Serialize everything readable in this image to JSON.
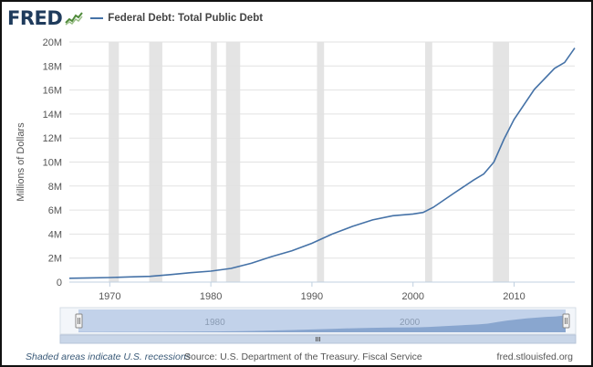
{
  "brand": {
    "logo_text": "FRED",
    "logo_icon": "line-chart-icon"
  },
  "legend": {
    "series_label": "Federal Debt: Total Public Debt",
    "color": "#4572a7"
  },
  "chart_data": {
    "type": "area",
    "ylabel": "Millions of Dollars",
    "ylim": [
      0,
      20000000
    ],
    "xlim": [
      1966,
      2016
    ],
    "y_ticks": [
      0,
      2000000,
      4000000,
      6000000,
      8000000,
      10000000,
      12000000,
      14000000,
      16000000,
      18000000,
      20000000
    ],
    "y_tick_labels": [
      "0",
      "2M",
      "4M",
      "6M",
      "8M",
      "10M",
      "12M",
      "14M",
      "16M",
      "18M",
      "20M"
    ],
    "x_ticks": [
      1970,
      1980,
      1990,
      2000,
      2010
    ],
    "x_tick_labels": [
      "1970",
      "1980",
      "1990",
      "2000",
      "2010"
    ],
    "grid": true,
    "series": [
      {
        "values": [
          [
            1966,
            320000
          ],
          [
            1968,
            350000
          ],
          [
            1970,
            380000
          ],
          [
            1972,
            430000
          ],
          [
            1974,
            480000
          ],
          [
            1976,
            620000
          ],
          [
            1978,
            780000
          ],
          [
            1980,
            910000
          ],
          [
            1982,
            1140000
          ],
          [
            1984,
            1570000
          ],
          [
            1986,
            2120000
          ],
          [
            1988,
            2600000
          ],
          [
            1990,
            3230000
          ],
          [
            1992,
            4000000
          ],
          [
            1994,
            4640000
          ],
          [
            1996,
            5180000
          ],
          [
            1998,
            5530000
          ],
          [
            2000,
            5670000
          ],
          [
            2001,
            5800000
          ],
          [
            2002,
            6230000
          ],
          [
            2004,
            7380000
          ],
          [
            2006,
            8500000
          ],
          [
            2007,
            9010000
          ],
          [
            2008,
            10000000
          ],
          [
            2009,
            11900000
          ],
          [
            2010,
            13550000
          ],
          [
            2012,
            16050000
          ],
          [
            2014,
            17800000
          ],
          [
            2015,
            18300000
          ],
          [
            2016,
            19500000
          ]
        ]
      }
    ],
    "recessions": [
      [
        1969.9,
        1970.9
      ],
      [
        1973.9,
        1975.2
      ],
      [
        1980.0,
        1980.6
      ],
      [
        1981.5,
        1982.9
      ],
      [
        1990.5,
        1991.2
      ],
      [
        2001.2,
        2001.9
      ],
      [
        2007.9,
        2009.5
      ]
    ],
    "navigator": {
      "tick_labels": [
        "1980",
        "2000"
      ],
      "ticks": [
        1980,
        2000
      ]
    }
  },
  "footer": {
    "note": "Shaded areas indicate U.S. recessions",
    "source": "Source: U.S. Department of the Treasury. Fiscal Service",
    "site": "fred.stlouisfed.org"
  }
}
